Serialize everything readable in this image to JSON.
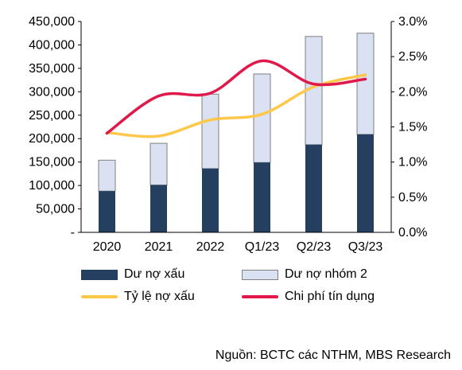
{
  "chart_data": {
    "type": "bar+line",
    "categories": [
      "2020",
      "2021",
      "2022",
      "Q1/23",
      "Q2/23",
      "Q3/23"
    ],
    "series": [
      {
        "name": "Dư nợ xấu",
        "kind": "stacked-bar",
        "axis": "left",
        "color": "#243f60",
        "values": [
          88000,
          101000,
          136000,
          149000,
          187000,
          209000
        ]
      },
      {
        "name": "Dư nợ nhóm 2",
        "kind": "stacked-bar",
        "axis": "left",
        "color": "#d9e1f2",
        "values": [
          66000,
          89000,
          159000,
          189000,
          231000,
          216000
        ]
      },
      {
        "name": "Tỷ lệ nợ xấu",
        "kind": "line",
        "axis": "right",
        "color": "#ffc84a",
        "values": [
          1.42,
          1.37,
          1.6,
          1.68,
          2.07,
          2.24
        ]
      },
      {
        "name": "Chi phí tín dụng",
        "kind": "line",
        "axis": "right",
        "color": "#e0194a",
        "values": [
          1.41,
          1.94,
          1.98,
          2.44,
          2.11,
          2.18
        ]
      }
    ],
    "y_left": {
      "min": 0,
      "max": 450000,
      "step": 50000,
      "tick_labels": [
        "-",
        "50,000",
        "100,000",
        "150,000",
        "200,000",
        "250,000",
        "300,000",
        "350,000",
        "400,000",
        "450,000"
      ]
    },
    "y_right": {
      "min": 0,
      "max": 3.0,
      "step": 0.5,
      "tick_labels": [
        "0.0%",
        "0.5%",
        "1.0%",
        "1.5%",
        "2.0%",
        "2.5%",
        "3.0%"
      ]
    },
    "grid": false,
    "legend_position": "bottom"
  },
  "source": "Nguồn: BCTC các NTHM, MBS Research"
}
